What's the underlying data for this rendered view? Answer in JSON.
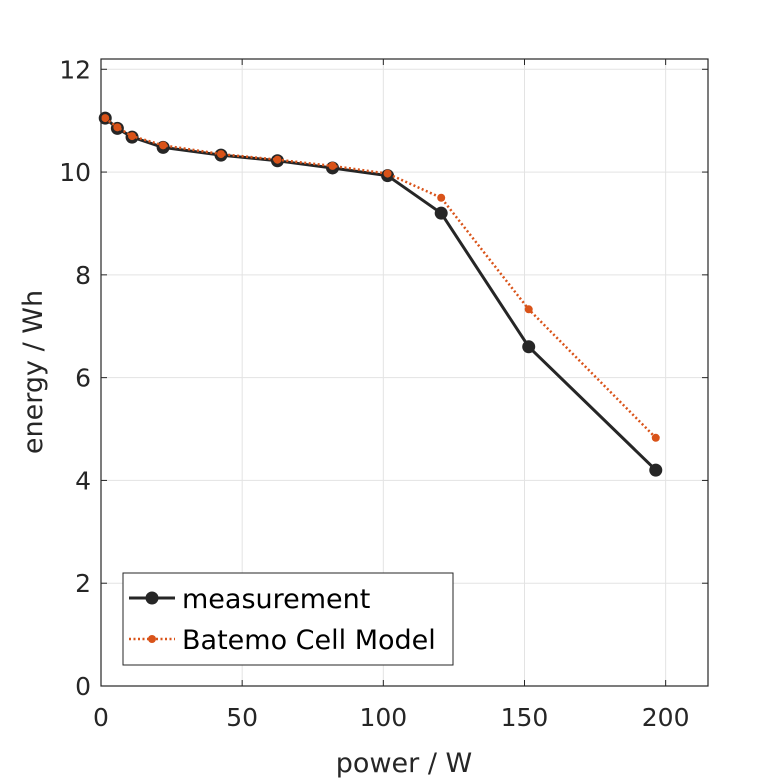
{
  "chart_data": {
    "type": "line",
    "title": "",
    "xlabel": "power / W",
    "ylabel": "energy / Wh",
    "xlim": [
      0,
      215
    ],
    "ylim": [
      0,
      12.2
    ],
    "xticks": [
      0,
      50,
      100,
      150,
      200
    ],
    "yticks": [
      0,
      2,
      4,
      6,
      8,
      10,
      12
    ],
    "grid": true,
    "legend_position": "bottom-left",
    "series": [
      {
        "name": "measurement",
        "color": "#262626",
        "line_style": "solid",
        "marker": "filled-circle",
        "x": [
          1.5,
          5.8,
          11,
          22,
          42.5,
          62.5,
          82,
          101.5,
          120.5,
          151.5,
          196.5
        ],
        "y": [
          11.05,
          10.85,
          10.68,
          10.48,
          10.33,
          10.22,
          10.08,
          9.93,
          9.2,
          6.6,
          4.2
        ]
      },
      {
        "name": "Batemo Cell Model",
        "color": "#D95319",
        "line_style": "dotted",
        "marker": "small-circle",
        "x": [
          1.5,
          5.8,
          11,
          22,
          42.5,
          62.5,
          82,
          101.5,
          120.5,
          151.5,
          196.5
        ],
        "y": [
          11.05,
          10.87,
          10.7,
          10.52,
          10.35,
          10.24,
          10.12,
          9.97,
          9.5,
          7.33,
          4.83
        ]
      }
    ]
  }
}
